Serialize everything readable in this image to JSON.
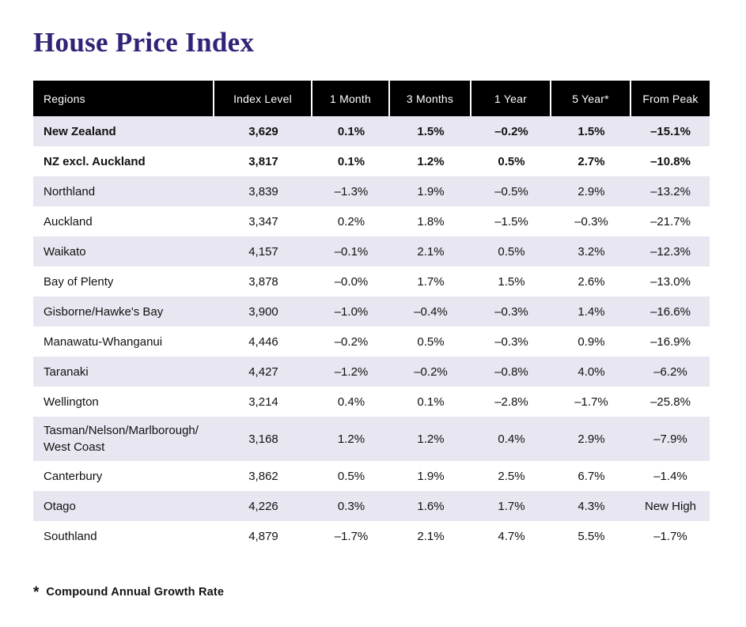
{
  "page": {
    "footnote": {
      "symbol": "*",
      "text": "Compound Annual Growth Rate"
    }
  },
  "colors": {
    "title": "#312478",
    "header_bg": "#000000",
    "header_text": "#ffffff",
    "row_alt_bg": "#e8e6f1",
    "row_bg": "#ffffff",
    "body_text": "#111111"
  },
  "chart_data": {
    "type": "table",
    "title": "House Price Index",
    "columns": [
      "Regions",
      "Index Level",
      "1 Month",
      "3 Months",
      "1 Year",
      "5 Year*",
      "From Peak"
    ],
    "rows": [
      {
        "region": "New Zealand",
        "values": [
          "3,629",
          "0.1%",
          "1.5%",
          "–0.2%",
          "1.5%",
          "–15.1%"
        ],
        "bold": true
      },
      {
        "region": "NZ excl. Auckland",
        "values": [
          "3,817",
          "0.1%",
          "1.2%",
          "0.5%",
          "2.7%",
          "–10.8%"
        ],
        "bold": true
      },
      {
        "region": "Northland",
        "values": [
          "3,839",
          "–1.3%",
          "1.9%",
          "–0.5%",
          "2.9%",
          "–13.2%"
        ],
        "bold": false
      },
      {
        "region": "Auckland",
        "values": [
          "3,347",
          "0.2%",
          "1.8%",
          "–1.5%",
          "–0.3%",
          "–21.7%"
        ],
        "bold": false
      },
      {
        "region": "Waikato",
        "values": [
          "4,157",
          "–0.1%",
          "2.1%",
          "0.5%",
          "3.2%",
          "–12.3%"
        ],
        "bold": false
      },
      {
        "region": "Bay of Plenty",
        "values": [
          "3,878",
          "–0.0%",
          "1.7%",
          "1.5%",
          "2.6%",
          "–13.0%"
        ],
        "bold": false
      },
      {
        "region": "Gisborne/Hawke's Bay",
        "values": [
          "3,900",
          "–1.0%",
          "–0.4%",
          "–0.3%",
          "1.4%",
          "–16.6%"
        ],
        "bold": false
      },
      {
        "region": "Manawatu-Whanganui",
        "values": [
          "4,446",
          "–0.2%",
          "0.5%",
          "–0.3%",
          "0.9%",
          "–16.9%"
        ],
        "bold": false
      },
      {
        "region": "Taranaki",
        "values": [
          "4,427",
          "–1.2%",
          "–0.2%",
          "–0.8%",
          "4.0%",
          "–6.2%"
        ],
        "bold": false
      },
      {
        "region": "Wellington",
        "values": [
          "3,214",
          "0.4%",
          "0.1%",
          "–2.8%",
          "–1.7%",
          "–25.8%"
        ],
        "bold": false
      },
      {
        "region": "Tasman/Nelson/Marlborough/\nWest Coast",
        "values": [
          "3,168",
          "1.2%",
          "1.2%",
          "0.4%",
          "2.9%",
          "–7.9%"
        ],
        "bold": false
      },
      {
        "region": "Canterbury",
        "values": [
          "3,862",
          "0.5%",
          "1.9%",
          "2.5%",
          "6.7%",
          "–1.4%"
        ],
        "bold": false
      },
      {
        "region": "Otago",
        "values": [
          "4,226",
          "0.3%",
          "1.6%",
          "1.7%",
          "4.3%",
          "New High"
        ],
        "bold": false
      },
      {
        "region": "Southland",
        "values": [
          "4,879",
          "–1.7%",
          "2.1%",
          "4.7%",
          "5.5%",
          "–1.7%"
        ],
        "bold": false
      }
    ]
  }
}
